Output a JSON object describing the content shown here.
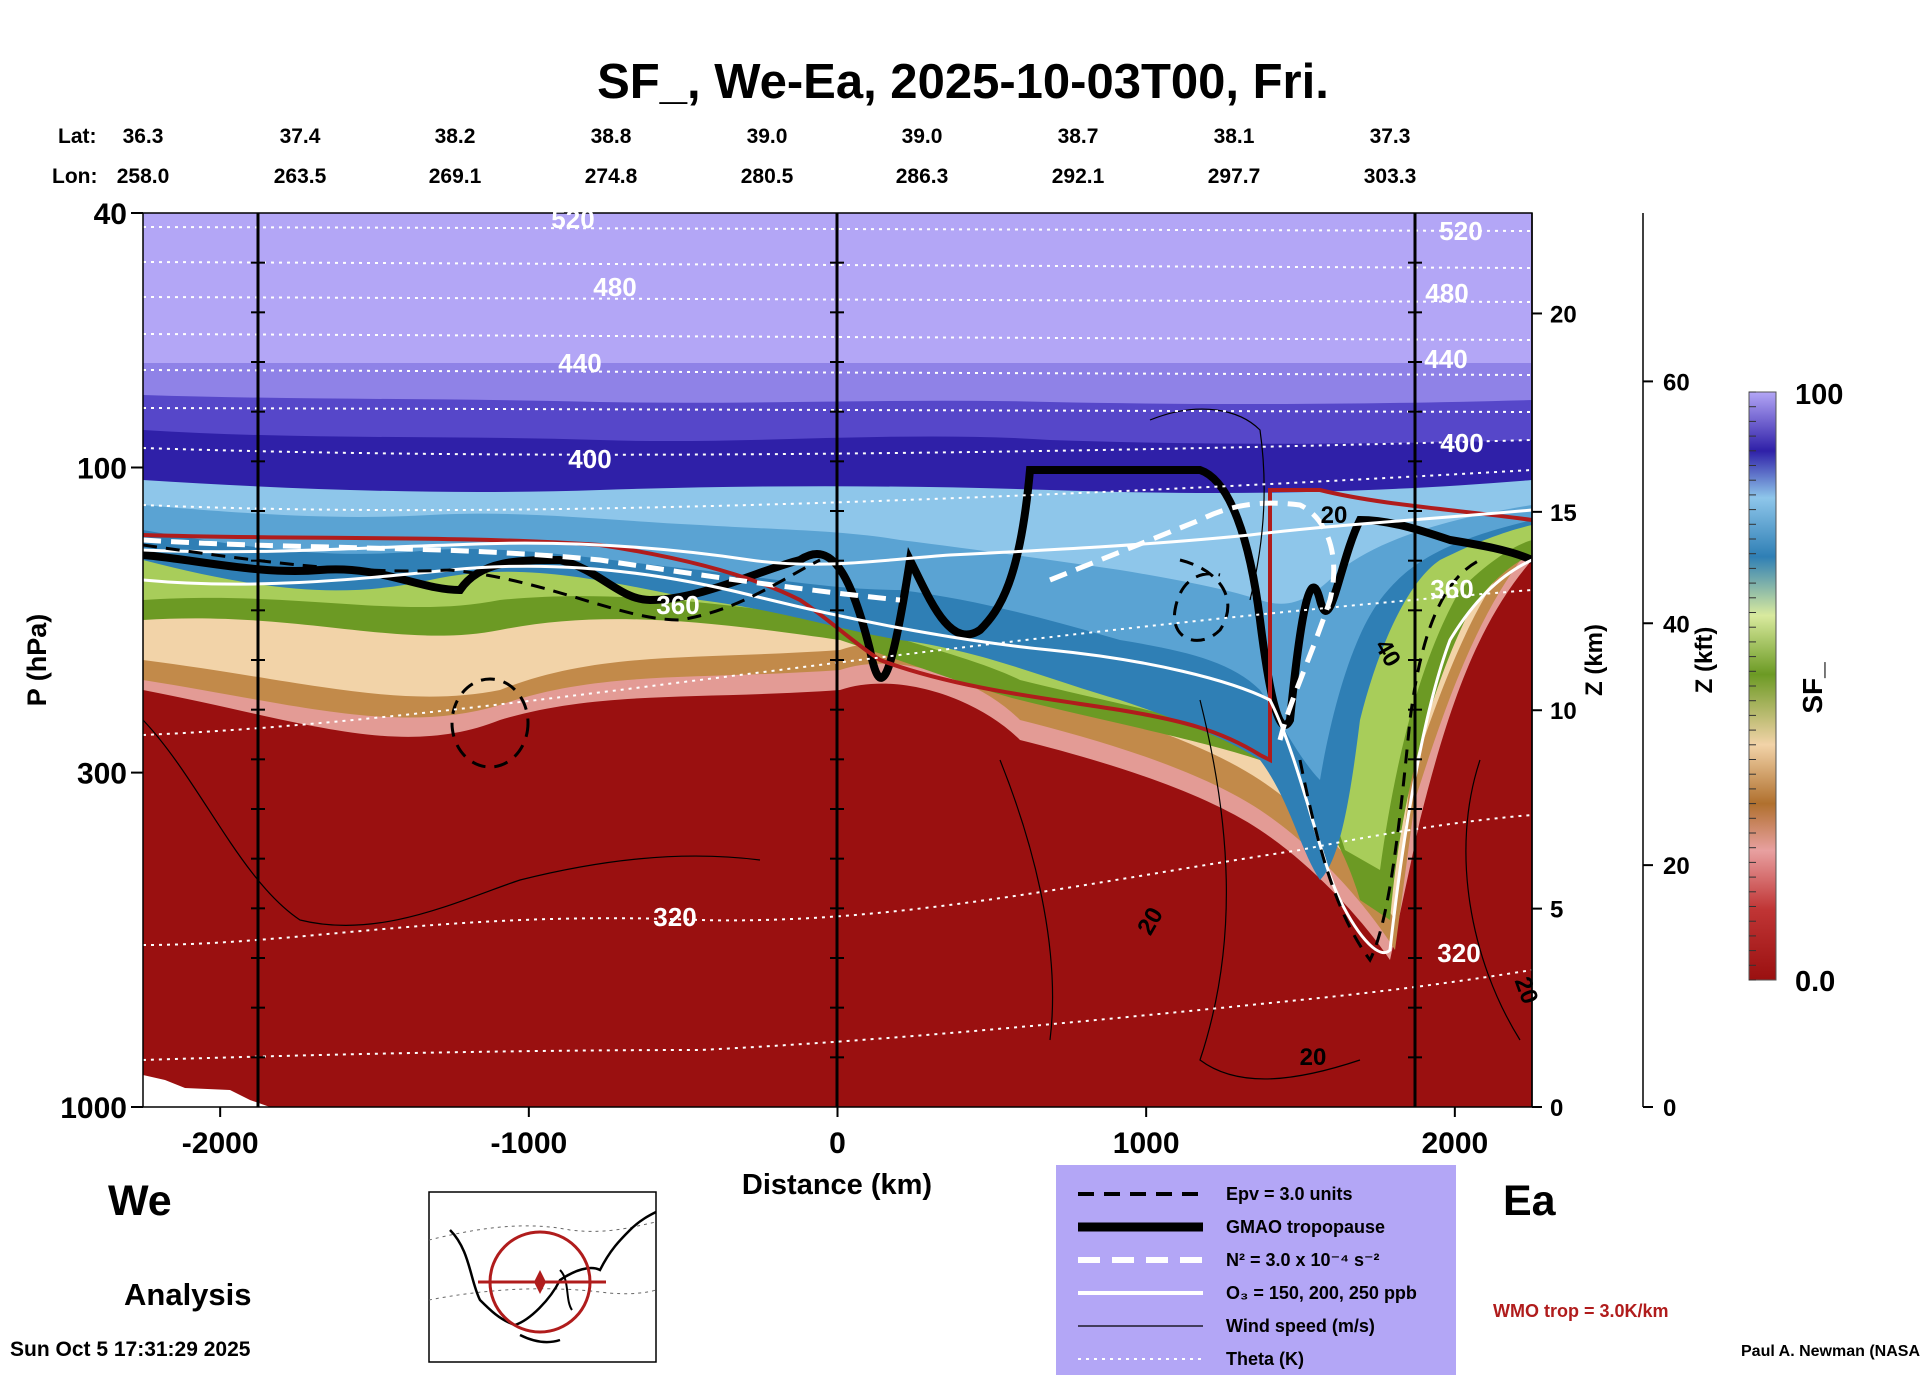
{
  "title": "SF_, We-Ea, 2025-10-03T00, Fri.",
  "header": {
    "lat_label": "Lat:",
    "lon_label": "Lon:",
    "lats": [
      "36.3",
      "37.4",
      "38.2",
      "38.8",
      "39.0",
      "39.0",
      "38.7",
      "38.1",
      "37.3"
    ],
    "lons": [
      "258.0",
      "263.5",
      "269.1",
      "274.8",
      "280.5",
      "286.3",
      "292.1",
      "297.7",
      "303.3"
    ]
  },
  "chart_data": {
    "type": "heatmap",
    "title": "SF_, We-Ea, 2025-10-03T00, Fri.",
    "xlabel": "Distance (km)",
    "ylabel": "P (hPa)",
    "xlim": [
      -2250,
      2250
    ],
    "ylim": [
      1000,
      40
    ],
    "y_scale": "log",
    "x_ticks": [
      "-2000",
      "-1000",
      "0",
      "1000",
      "2000"
    ],
    "y_ticks": [
      "40",
      "100",
      "300",
      "1000"
    ],
    "z_km_label": "Z (km)",
    "z_km_ticks": [
      "0",
      "5",
      "10",
      "15",
      "20"
    ],
    "z_kft_label": "Z (kft)",
    "z_kft_ticks": [
      "0",
      "20",
      "40",
      "60"
    ],
    "colorbar": {
      "label": "SF_",
      "min": "0.0",
      "max": "100"
    },
    "theta_labels": [
      "520",
      "480",
      "440",
      "400",
      "360",
      "320",
      "520",
      "480",
      "440",
      "400",
      "360",
      "320"
    ],
    "wind_labels": [
      "20",
      "40",
      "20",
      "20",
      "20"
    ],
    "left_label": "We",
    "right_label": "Ea",
    "analysis_label": "Analysis",
    "legend": [
      {
        "style": "dashed-black",
        "label": "Epv = 3.0 units"
      },
      {
        "style": "thick-black",
        "label": "GMAO tropopause"
      },
      {
        "style": "dashed-white",
        "label": "N² = 3.0 x 10⁻⁴ s⁻²"
      },
      {
        "style": "solid-white",
        "label": "O₃ = 150, 200, 250 ppb"
      },
      {
        "style": "thin-black",
        "label": "Wind speed (m/s)"
      },
      {
        "style": "dotted-white",
        "label": "Theta (K)"
      }
    ],
    "wmo_label": "WMO trop = 3.0K/km",
    "colors": {
      "stratosphere_top": "#b3a6f6",
      "stratosphere_band": "#3a2cb4",
      "tropopause_blue": "#2f7fb5",
      "green": "#8db83b",
      "tan": "#c28a4a",
      "troposphere_red": "#9a1010",
      "wmo_red": "#b01c1c",
      "legend_bg": "#b3a6f6"
    }
  },
  "footer": {
    "timestamp": "Sun Oct  5 17:31:29 2025",
    "credit": "Paul A. Newman (NASA"
  }
}
